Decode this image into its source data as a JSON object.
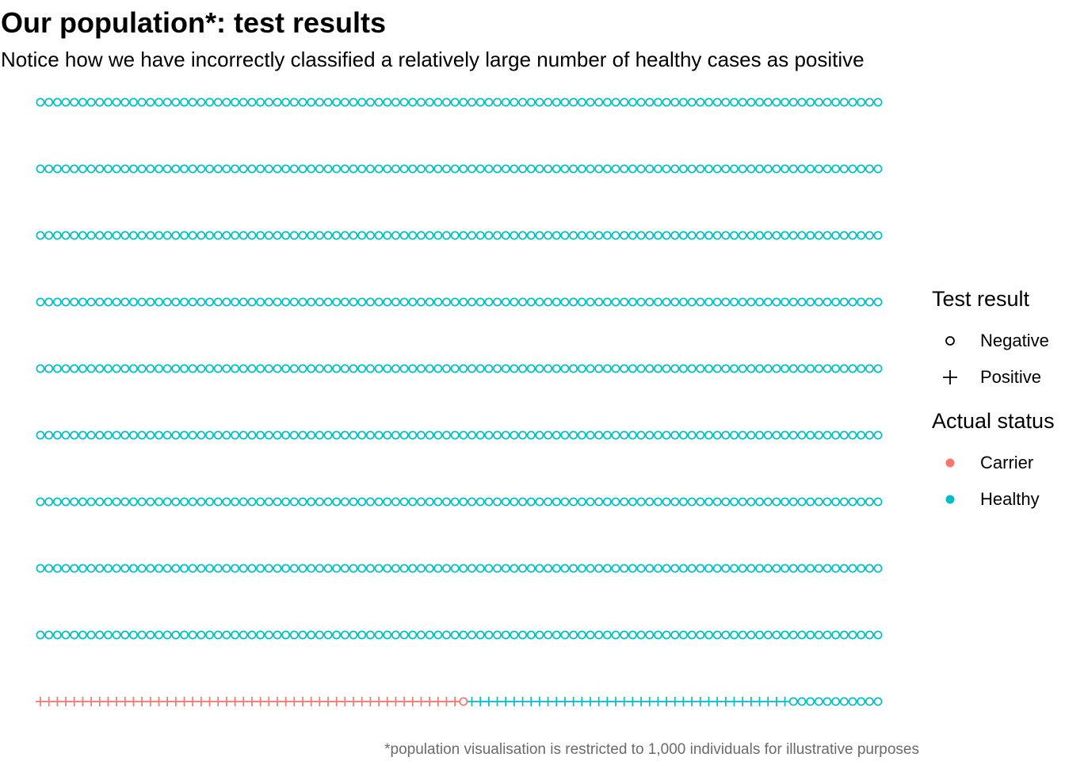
{
  "chart_data": {
    "type": "scatter",
    "title": "Our population*: test results",
    "subtitle": "Notice how we have incorrectly classified a relatively large number of healthy cases as positive",
    "caption": "*population visualisation is restricted to 1,000 individuals for illustrative purposes",
    "grid": "off",
    "axes": "none",
    "layout": {
      "rows": 10,
      "columns": 100,
      "total": 1000
    },
    "rows": [
      {
        "row": 1,
        "segments": [
          {
            "status": "Carrier",
            "result": "Positive",
            "count": 50
          },
          {
            "status": "Carrier",
            "result": "Negative",
            "count": 1
          },
          {
            "status": "Healthy",
            "result": "Positive",
            "count": 38
          },
          {
            "status": "Healthy",
            "result": "Negative",
            "count": 11
          }
        ]
      },
      {
        "row": 2,
        "segments": [
          {
            "status": "Healthy",
            "result": "Negative",
            "count": 100
          }
        ]
      },
      {
        "row": 3,
        "segments": [
          {
            "status": "Healthy",
            "result": "Negative",
            "count": 100
          }
        ]
      },
      {
        "row": 4,
        "segments": [
          {
            "status": "Healthy",
            "result": "Negative",
            "count": 100
          }
        ]
      },
      {
        "row": 5,
        "segments": [
          {
            "status": "Healthy",
            "result": "Negative",
            "count": 100
          }
        ]
      },
      {
        "row": 6,
        "segments": [
          {
            "status": "Healthy",
            "result": "Negative",
            "count": 100
          }
        ]
      },
      {
        "row": 7,
        "segments": [
          {
            "status": "Healthy",
            "result": "Negative",
            "count": 100
          }
        ]
      },
      {
        "row": 8,
        "segments": [
          {
            "status": "Healthy",
            "result": "Negative",
            "count": 100
          }
        ]
      },
      {
        "row": 9,
        "segments": [
          {
            "status": "Healthy",
            "result": "Negative",
            "count": 100
          }
        ]
      },
      {
        "row": 10,
        "segments": [
          {
            "status": "Healthy",
            "result": "Negative",
            "count": 100
          }
        ]
      }
    ],
    "legend": {
      "placement": "right",
      "shape": {
        "title": "Test result",
        "items": [
          {
            "label": "Negative",
            "shape": "circle-open"
          },
          {
            "label": "Positive",
            "shape": "plus"
          }
        ]
      },
      "color": {
        "title": "Actual status",
        "items": [
          {
            "label": "Carrier",
            "color": "#F8766D"
          },
          {
            "label": "Healthy",
            "color": "#00BFC4"
          }
        ]
      }
    }
  }
}
